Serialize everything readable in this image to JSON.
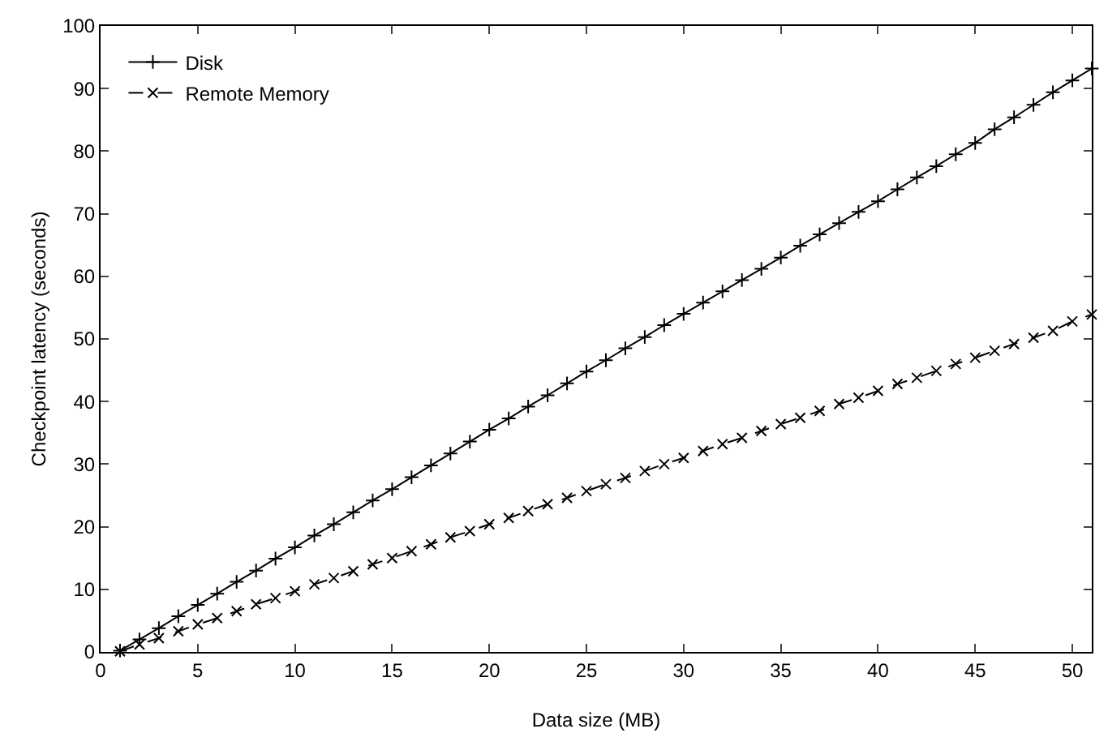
{
  "chart_data": {
    "type": "line",
    "xlabel": "Data size (MB)",
    "ylabel": "Checkpoint latency (seconds)",
    "x": [
      1,
      2,
      3,
      4,
      5,
      6,
      7,
      8,
      9,
      10,
      11,
      12,
      13,
      14,
      15,
      16,
      17,
      18,
      19,
      20,
      21,
      22,
      23,
      24,
      25,
      26,
      27,
      28,
      29,
      30,
      31,
      32,
      33,
      34,
      35,
      36,
      37,
      38,
      39,
      40,
      41,
      42,
      43,
      44,
      45,
      46,
      47,
      48,
      49,
      50,
      51
    ],
    "series": [
      {
        "name": "Disk",
        "color": "#000000",
        "marker": "cross",
        "line_style": "solid",
        "values": [
          0.2,
          2,
          3.8,
          5.7,
          7.5,
          9.3,
          11.2,
          13,
          14.9,
          16.7,
          18.6,
          20.4,
          22.3,
          24.2,
          26,
          27.9,
          29.8,
          31.7,
          33.6,
          35.5,
          37.3,
          39.2,
          41,
          42.9,
          44.8,
          46.6,
          48.5,
          50.3,
          52.2,
          54,
          55.8,
          57.6,
          59.4,
          61.2,
          63,
          64.9,
          66.7,
          68.5,
          70.3,
          72,
          73.9,
          75.8,
          77.6,
          79.5,
          81.3,
          83.5,
          85.4,
          87.4,
          89.4,
          91.3,
          93.2
        ]
      },
      {
        "name": "Remote Memory",
        "color": "#000000",
        "marker": "x",
        "line_style": "dashed",
        "values": [
          0.1,
          1.2,
          2.2,
          3.3,
          4.4,
          5.4,
          6.5,
          7.6,
          8.6,
          9.7,
          10.8,
          11.8,
          12.9,
          14,
          15,
          16.1,
          17.2,
          18.3,
          19.3,
          20.4,
          21.4,
          22.5,
          23.6,
          24.6,
          25.7,
          26.8,
          27.8,
          28.9,
          30,
          31,
          32.1,
          33.2,
          34.2,
          35.3,
          36.4,
          37.4,
          38.5,
          39.6,
          40.6,
          41.7,
          42.8,
          43.8,
          44.9,
          46,
          47,
          48.1,
          49.2,
          50.2,
          51.3,
          52.8,
          53.9
        ]
      }
    ],
    "xlim": [
      0,
      51
    ],
    "xticks": [
      0,
      5,
      10,
      15,
      20,
      25,
      30,
      35,
      40,
      45,
      50
    ],
    "ylim": [
      0,
      100
    ],
    "yticks": [
      0,
      10,
      20,
      30,
      40,
      50,
      60,
      70,
      80,
      90,
      100
    ],
    "grid": false,
    "legend": "top left"
  }
}
